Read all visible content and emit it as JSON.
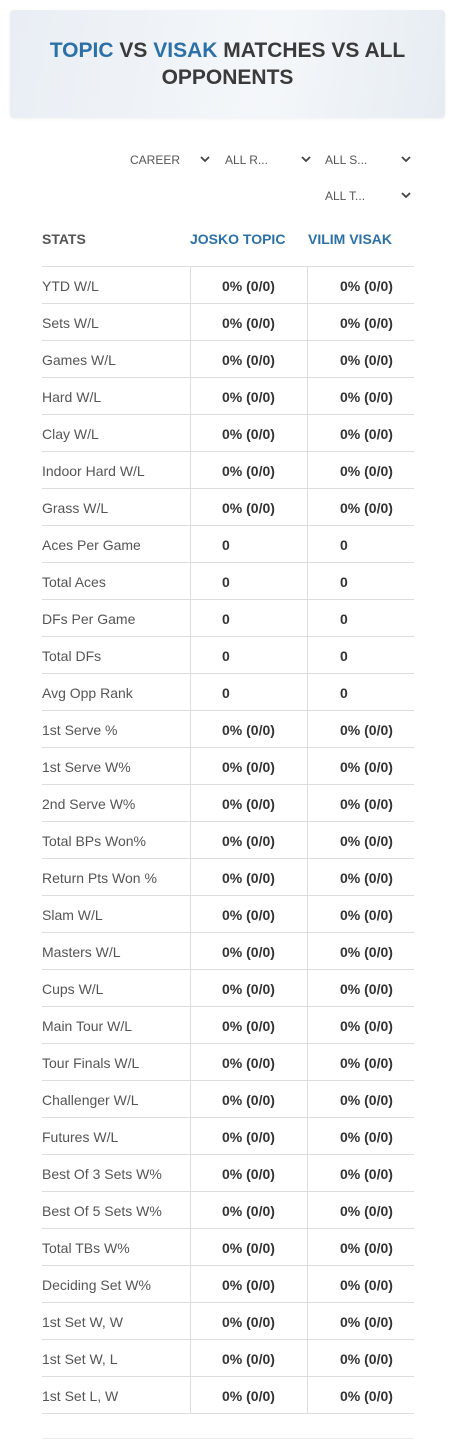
{
  "header": {
    "title": {
      "player1": "TOPIC",
      "vs": "VS",
      "player2": "VISAK",
      "rest": "MATCHES VS ALL OPPONENTS"
    }
  },
  "filters": [
    "CAREER",
    "ALL R...",
    "ALL S...",
    "ALL T..."
  ],
  "table": {
    "columns": [
      "STATS",
      "JOSKO TOPIC",
      "VILIM VISAK"
    ],
    "rows": [
      [
        "YTD W/L",
        "0% (0/0)",
        "0% (0/0)"
      ],
      [
        "Sets W/L",
        "0% (0/0)",
        "0% (0/0)"
      ],
      [
        "Games W/L",
        "0% (0/0)",
        "0% (0/0)"
      ],
      [
        "Hard W/L",
        "0% (0/0)",
        "0% (0/0)"
      ],
      [
        "Clay W/L",
        "0% (0/0)",
        "0% (0/0)"
      ],
      [
        "Indoor Hard W/L",
        "0% (0/0)",
        "0% (0/0)"
      ],
      [
        "Grass W/L",
        "0% (0/0)",
        "0% (0/0)"
      ],
      [
        "Aces Per Game",
        "0",
        "0"
      ],
      [
        "Total Aces",
        "0",
        "0"
      ],
      [
        "DFs Per Game",
        "0",
        "0"
      ],
      [
        "Total DFs",
        "0",
        "0"
      ],
      [
        "Avg Opp Rank",
        "0",
        "0"
      ],
      [
        "1st Serve %",
        "0% (0/0)",
        "0% (0/0)"
      ],
      [
        "1st Serve W%",
        "0% (0/0)",
        "0% (0/0)"
      ],
      [
        "2nd Serve W%",
        "0% (0/0)",
        "0% (0/0)"
      ],
      [
        "Total BPs Won%",
        "0% (0/0)",
        "0% (0/0)"
      ],
      [
        "Return Pts Won %",
        "0% (0/0)",
        "0% (0/0)"
      ],
      [
        "Slam W/L",
        "0% (0/0)",
        "0% (0/0)"
      ],
      [
        "Masters W/L",
        "0% (0/0)",
        "0% (0/0)"
      ],
      [
        "Cups W/L",
        "0% (0/0)",
        "0% (0/0)"
      ],
      [
        "Main Tour W/L",
        "0% (0/0)",
        "0% (0/0)"
      ],
      [
        "Tour Finals W/L",
        "0% (0/0)",
        "0% (0/0)"
      ],
      [
        "Challenger W/L",
        "0% (0/0)",
        "0% (0/0)"
      ],
      [
        "Futures W/L",
        "0% (0/0)",
        "0% (0/0)"
      ],
      [
        "Best Of 3 Sets W%",
        "0% (0/0)",
        "0% (0/0)"
      ],
      [
        "Best Of 5 Sets W%",
        "0% (0/0)",
        "0% (0/0)"
      ],
      [
        "Total TBs W%",
        "0% (0/0)",
        "0% (0/0)"
      ],
      [
        "Deciding Set W%",
        "0% (0/0)",
        "0% (0/0)"
      ],
      [
        "1st Set W, W",
        "0% (0/0)",
        "0% (0/0)"
      ],
      [
        "1st Set W, L",
        "0% (0/0)",
        "0% (0/0)"
      ],
      [
        "1st Set L, W",
        "0% (0/0)",
        "0% (0/0)"
      ]
    ]
  }
}
